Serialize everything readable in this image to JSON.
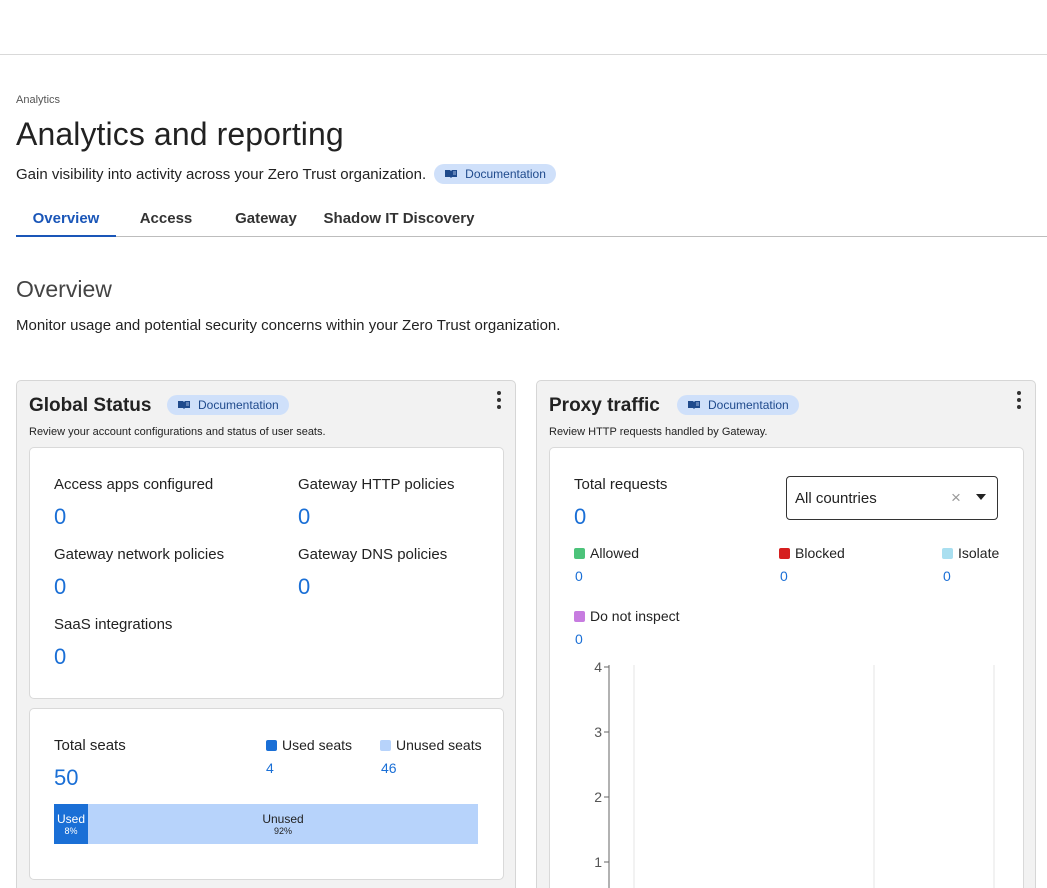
{
  "breadcrumb": "Analytics",
  "page": {
    "title": "Analytics and reporting",
    "subtitle": "Gain visibility into activity across your Zero Trust organization.",
    "doc_label": "Documentation"
  },
  "tabs": [
    {
      "label": "Overview",
      "active": true
    },
    {
      "label": "Access",
      "active": false
    },
    {
      "label": "Gateway",
      "active": false
    },
    {
      "label": "Shadow IT Discovery",
      "active": false
    }
  ],
  "overview": {
    "title": "Overview",
    "description": "Monitor usage and potential security concerns within your Zero Trust organization."
  },
  "global_status": {
    "title": "Global Status",
    "doc_label": "Documentation",
    "description": "Review your account configurations and status of user seats.",
    "stats": [
      {
        "label": "Access apps configured",
        "value": "0"
      },
      {
        "label": "Gateway HTTP policies",
        "value": "0"
      },
      {
        "label": "Gateway network policies",
        "value": "0"
      },
      {
        "label": "Gateway DNS policies",
        "value": "0"
      },
      {
        "label": "SaaS integrations",
        "value": "0"
      }
    ],
    "seats": {
      "total_label": "Total seats",
      "total_value": "50",
      "used_label": "Used seats",
      "used_value": "4",
      "unused_label": "Unused seats",
      "unused_value": "46",
      "bar_used_label": "Used",
      "bar_used_pct": "8%",
      "bar_unused_label": "Unused",
      "bar_unused_pct": "92%",
      "used_fraction": 0.08
    }
  },
  "proxy_traffic": {
    "title": "Proxy traffic",
    "doc_label": "Documentation",
    "description": "Review HTTP requests handled by Gateway.",
    "total_label": "Total requests",
    "total_value": "0",
    "country_select": "All countries",
    "legend": [
      {
        "label": "Allowed",
        "value": "0",
        "color": "#4cc37a"
      },
      {
        "label": "Blocked",
        "value": "0",
        "color": "#d61f1f"
      },
      {
        "label": "Isolate",
        "value": "0",
        "color": "#a9dff0"
      },
      {
        "label": "Do not inspect",
        "value": "0",
        "color": "#c77ce0"
      }
    ]
  },
  "colors": {
    "accent": "#1a6fd6",
    "used_seats": "#1a6fd6",
    "unused_seats": "#b7d3fb"
  },
  "chart_data": {
    "type": "line",
    "title": "",
    "xlabel": "",
    "ylabel": "",
    "y_ticks": [
      "4",
      "3",
      "2",
      "1"
    ],
    "ylim": [
      0,
      4
    ],
    "series": []
  }
}
